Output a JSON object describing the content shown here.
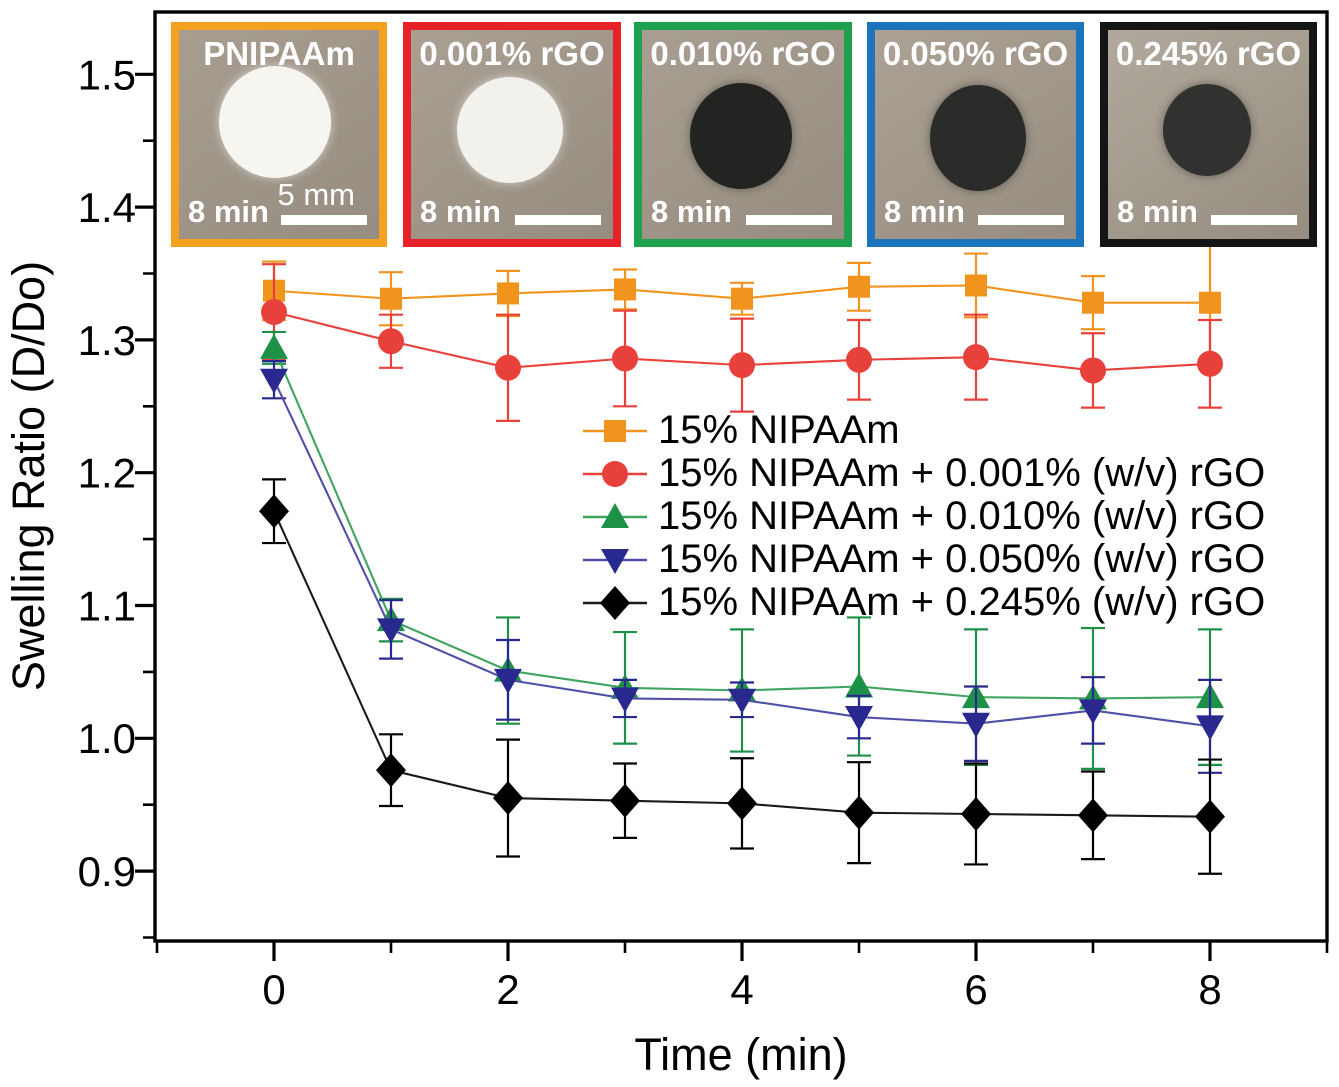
{
  "figure": {
    "background": "#ffffff",
    "palette": {
      "orange": "#F0941E",
      "red": "#E8413C",
      "green": "#1E9148",
      "navy": "#28288F",
      "black": "#000000",
      "inset_blue_border": "#1C75BC",
      "inset_red_border": "#E62228",
      "inset_green_border": "#1FA04F",
      "inset_orange_border": "#F5A01E"
    }
  },
  "insets": [
    {
      "label": "PNIPAAm",
      "time_label": "8 min",
      "scale_label": "5 mm",
      "border_color": "#F5A01E",
      "disc": "white"
    },
    {
      "label": "0.001% rGO",
      "time_label": "8 min",
      "border_color": "#E62228",
      "disc": "white"
    },
    {
      "label": "0.010% rGO",
      "time_label": "8 min",
      "border_color": "#1FA04F",
      "disc": "dark"
    },
    {
      "label": "0.050% rGO",
      "time_label": "8 min",
      "border_color": "#1C75BC",
      "disc": "dark"
    },
    {
      "label": "0.245% rGO",
      "time_label": "8 min",
      "border_color": "#151515",
      "disc": "dark"
    }
  ],
  "chart_data": {
    "type": "line",
    "title": "",
    "xlabel": "Time (min)",
    "ylabel": "Swelling Ratio (D/Do)",
    "x": [
      0,
      1,
      2,
      3,
      4,
      5,
      6,
      7,
      8
    ],
    "x_ticks": [
      0,
      2,
      4,
      6,
      8
    ],
    "x_tick_labels": [
      "0",
      "2",
      "4",
      "6",
      "8"
    ],
    "x_minor_ticks": [
      -1,
      1,
      3,
      5,
      7,
      9
    ],
    "y_ticks": [
      0.9,
      1.0,
      1.1,
      1.2,
      1.3,
      1.4,
      1.5
    ],
    "y_tick_labels": [
      "0.9",
      "1.0",
      "1.1",
      "1.2",
      "1.3",
      "1.4",
      "1.5"
    ],
    "y_minor_ticks": [
      0.85,
      0.95,
      1.05,
      1.15,
      1.25,
      1.35,
      1.45
    ],
    "xlim": [
      -1,
      9
    ],
    "ylim": [
      0.85,
      1.55
    ],
    "grid": false,
    "legend_position": "center",
    "series": [
      {
        "name": "15% NIPAAm",
        "marker": "square",
        "color": "#F0941E",
        "line_color": "#F0941E",
        "values": [
          1.337,
          1.331,
          1.335,
          1.338,
          1.331,
          1.34,
          1.341,
          1.328,
          1.328
        ],
        "errors": [
          0.022,
          0.02,
          0.017,
          0.015,
          0.012,
          0.018,
          0.024,
          0.02,
          0.044
        ]
      },
      {
        "name": "15% NIPAAm + 0.001% (w/v) rGO",
        "marker": "circle",
        "color": "#E8413C",
        "line_color": "#E8413C",
        "values": [
          1.321,
          1.299,
          1.279,
          1.286,
          1.281,
          1.285,
          1.287,
          1.277,
          1.282
        ],
        "errors": [
          0.036,
          0.02,
          0.04,
          0.036,
          0.035,
          0.03,
          0.032,
          0.028,
          0.033
        ]
      },
      {
        "name": "15% NIPAAm + 0.010% (w/v) rGO",
        "marker": "triangle-up",
        "color": "#1E9148",
        "line_color": "#3FA45F",
        "values": [
          1.294,
          1.089,
          1.051,
          1.038,
          1.036,
          1.039,
          1.031,
          1.03,
          1.031
        ],
        "errors": [
          0.012,
          0.016,
          0.04,
          0.042,
          0.046,
          0.052,
          0.051,
          0.053,
          0.051
        ]
      },
      {
        "name": "15% NIPAAm + 0.050% (w/v) rGO",
        "marker": "triangle-down",
        "color": "#28288F",
        "line_color": "#5050A8",
        "values": [
          1.27,
          1.082,
          1.044,
          1.03,
          1.029,
          1.016,
          1.011,
          1.021,
          1.009
        ],
        "errors": [
          0.014,
          0.022,
          0.03,
          0.014,
          0.013,
          0.016,
          0.028,
          0.025,
          0.035
        ]
      },
      {
        "name": "15% NIPAAm + 0.245% (w/v) rGO",
        "marker": "diamond",
        "color": "#000000",
        "line_color": "#1A1A1A",
        "values": [
          1.171,
          0.976,
          0.955,
          0.953,
          0.951,
          0.944,
          0.943,
          0.942,
          0.941
        ],
        "errors": [
          0.024,
          0.027,
          0.044,
          0.028,
          0.034,
          0.038,
          0.038,
          0.033,
          0.043
        ]
      }
    ]
  }
}
